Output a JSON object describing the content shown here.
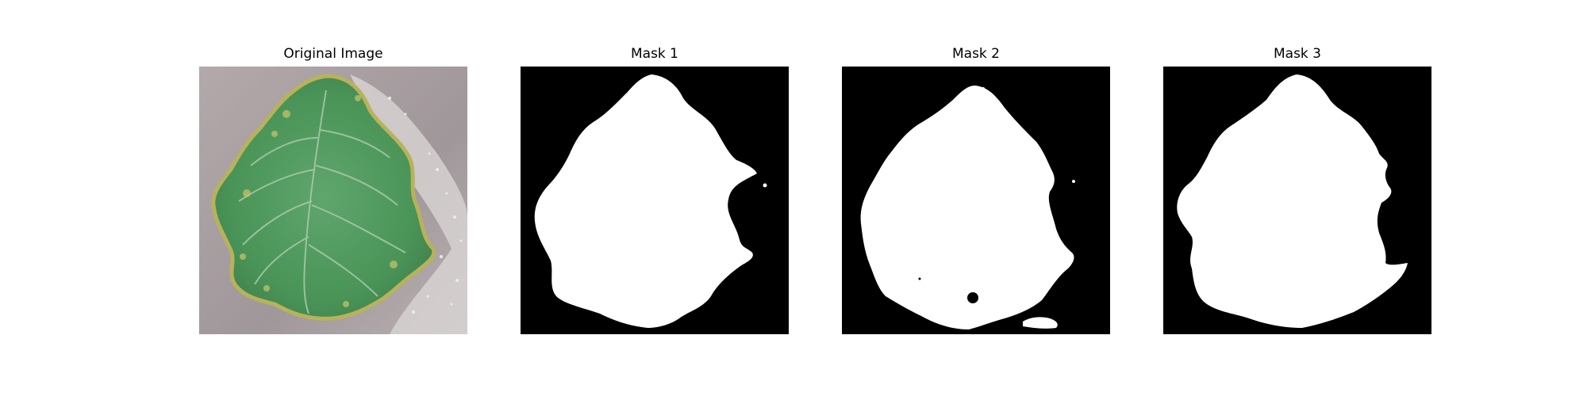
{
  "figure": {
    "panels": [
      {
        "title": "Original Image"
      },
      {
        "title": "Mask 1"
      },
      {
        "title": "Mask 2"
      },
      {
        "title": "Mask 3"
      }
    ]
  },
  "colors": {
    "background": "#ffffff",
    "mask_background": "#000000",
    "mask_foreground": "#ffffff",
    "photo_background": "#a59c9e",
    "leaf_green": "#4f9a5c",
    "leaf_edge_yellow": "#b9b35a"
  }
}
